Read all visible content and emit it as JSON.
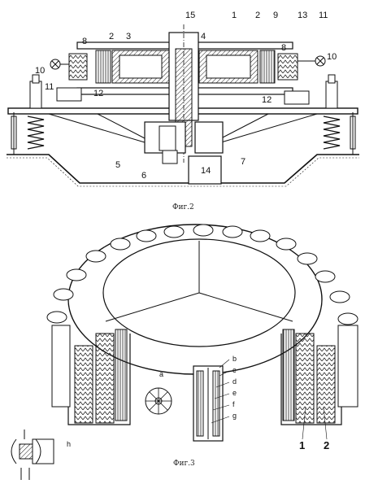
{
  "figures": [
    {
      "caption": "Фиг.2",
      "labels": [
        "1",
        "2",
        "3",
        "4",
        "5",
        "6",
        "7",
        "8",
        "9",
        "10",
        "11",
        "12",
        "13",
        "14",
        "15"
      ]
    },
    {
      "caption": "Фиг.3",
      "labels": [
        "1",
        "2",
        "a",
        "b",
        "c",
        "d",
        "e",
        "f",
        "g",
        "h"
      ]
    }
  ]
}
